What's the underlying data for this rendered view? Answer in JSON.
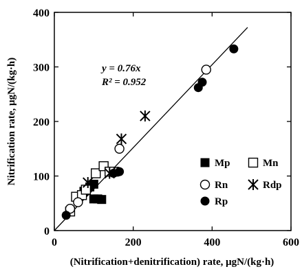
{
  "chart_data": {
    "type": "scatter",
    "title": "",
    "xlabel": "(Nitrification+denitrification) rate, μgN/(kg·h)",
    "ylabel": "Nitrification rate, μgN/(kg·h)",
    "xlim": [
      0,
      600
    ],
    "ylim": [
      0,
      400
    ],
    "xticks": [
      "0",
      "200",
      "400",
      "600"
    ],
    "yticks": [
      "0",
      "100",
      "200",
      "300",
      "400"
    ],
    "grid": false,
    "legend_position": "bottom-right",
    "annotation": {
      "equation": "y = 0.76x",
      "r2": "R² = 0.952"
    },
    "regression": {
      "slope": 0.76,
      "intercept": 0,
      "x_range": [
        0,
        490
      ]
    },
    "series": [
      {
        "name": "Mp",
        "marker": "filled-square",
        "points": [
          [
            75,
            72
          ],
          [
            90,
            80
          ],
          [
            100,
            85
          ],
          [
            100,
            58
          ],
          [
            110,
            58
          ],
          [
            120,
            57
          ]
        ]
      },
      {
        "name": "Mn",
        "marker": "open-square",
        "points": [
          [
            40,
            35
          ],
          [
            55,
            62
          ],
          [
            70,
            65
          ],
          [
            80,
            75
          ],
          [
            105,
            105
          ],
          [
            125,
            118
          ],
          [
            140,
            108
          ]
        ]
      },
      {
        "name": "Rn",
        "marker": "open-circle",
        "points": [
          [
            40,
            40
          ],
          [
            60,
            52
          ],
          [
            160,
            108
          ],
          [
            165,
            150
          ],
          [
            385,
            295
          ]
        ]
      },
      {
        "name": "Rdp",
        "marker": "asterisk",
        "points": [
          [
            85,
            88
          ],
          [
            140,
            105
          ],
          [
            170,
            168
          ],
          [
            230,
            210
          ]
        ]
      },
      {
        "name": "Rp",
        "marker": "filled-circle",
        "points": [
          [
            30,
            28
          ],
          [
            150,
            105
          ],
          [
            165,
            108
          ],
          [
            365,
            262
          ],
          [
            375,
            272
          ],
          [
            455,
            333
          ]
        ]
      }
    ]
  }
}
